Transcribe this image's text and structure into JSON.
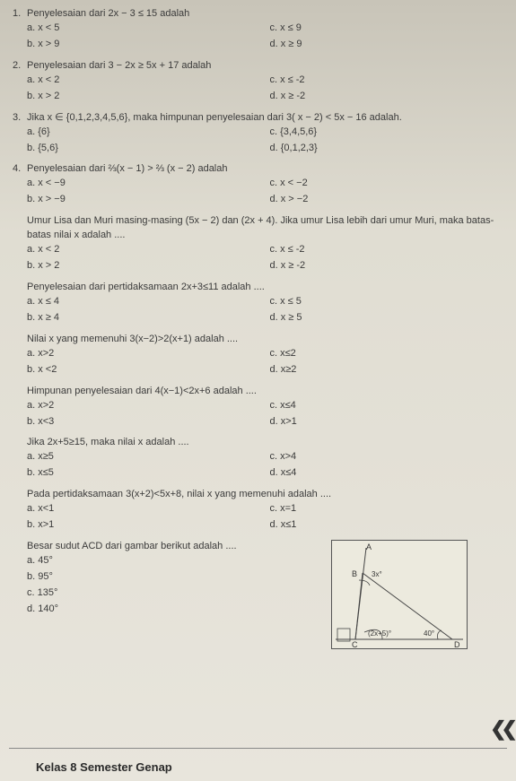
{
  "questions": [
    {
      "num": "1",
      "text": "Penyelesaian dari 2x − 3 ≤ 15 adalah",
      "a": "a.  x < 5",
      "b": "b.  x > 9",
      "c": "c.  x ≤ 9",
      "d": "d.  x ≥ 9"
    },
    {
      "num": "2",
      "text": "Penyelesaian dari 3 − 2x ≥ 5x + 17 adalah",
      "a": "a.  x < 2",
      "b": "b.  x > 2",
      "c": "c.  x ≤ -2",
      "d": "d.  x ≥ -2"
    },
    {
      "num": "3",
      "text": "Jika x ∈ {0,1,2,3,4,5,6}, maka himpunan penyelesaian dari 3( x − 2) <  5x − 16 adalah.",
      "a": "a.  {6}",
      "b": "b.  {5,6}",
      "c": "c.  {3,4,5,6}",
      "d": "d.  {0,1,2,3}"
    },
    {
      "num": "4",
      "text": "Penyelesaian dari ⅔(x − 1) > ⅔ (x − 2) adalah",
      "a": "a.  x < −9",
      "b": "b.  x > −9",
      "c": "c.  x < −2",
      "d": "d.  x > −2"
    },
    {
      "num": "",
      "text": "Umur Lisa dan Muri masing-masing (5x − 2) dan (2x + 4). Jika umur Lisa lebih dari umur Muri, maka batas-batas nilai x adalah ....",
      "a": "a.  x < 2",
      "b": "b.  x > 2",
      "c": "c.  x ≤ -2",
      "d": "d.  x ≥ -2"
    },
    {
      "num": "",
      "text": "Penyelesaian dari pertidaksamaan 2x+3≤11 adalah ....",
      "a": "a.  x ≤ 4",
      "b": "b.  x ≥ 4",
      "c": "c.  x ≤ 5",
      "d": "d.  x ≥ 5"
    },
    {
      "num": "",
      "text": "Nilai x yang memenuhi 3(x−2)>2(x+1) adalah ....",
      "a": "a.  x>2",
      "b": "b.  x <2",
      "c": "c.  x≤2",
      "d": "d.  x≥2"
    },
    {
      "num": "",
      "text": "Himpunan penyelesaian dari 4(x−1)<2x+6 adalah ....",
      "a": "a.  x>2",
      "b": "b.  x<3",
      "c": "c.  x≤4",
      "d": "d.  x>1"
    },
    {
      "num": "",
      "text": "Jika 2x+5≥15, maka nilai x adalah ....",
      "a": "a.  x≥5",
      "b": "b.  x≤5",
      "c": "c.  x>4",
      "d": "d.  x≤4"
    },
    {
      "num": "",
      "text": "Pada pertidaksamaan 3(x+2)<5x+8, nilai x yang memenuhi adalah ....",
      "a": "a.  x<1",
      "b": "b.  x>1",
      "c": "c.  x=1",
      "d": "d.  x≤1"
    }
  ],
  "q11": {
    "text": "Besar sudut ACD dari gambar berikut adalah ....",
    "a": "a.  45°",
    "b": "b.  95°",
    "c": "c.  135°",
    "d": "d.  140°"
  },
  "diagram": {
    "labelA": "A",
    "labelB": "B",
    "labelC": "C",
    "labelD": "D",
    "angleTop": "3x°",
    "angleLeft": "(2x+5)°",
    "angleRight": "40°",
    "strokeColor": "#444444",
    "bgColor": "#eceade"
  },
  "footer": "Kelas 8 Semester Genap"
}
